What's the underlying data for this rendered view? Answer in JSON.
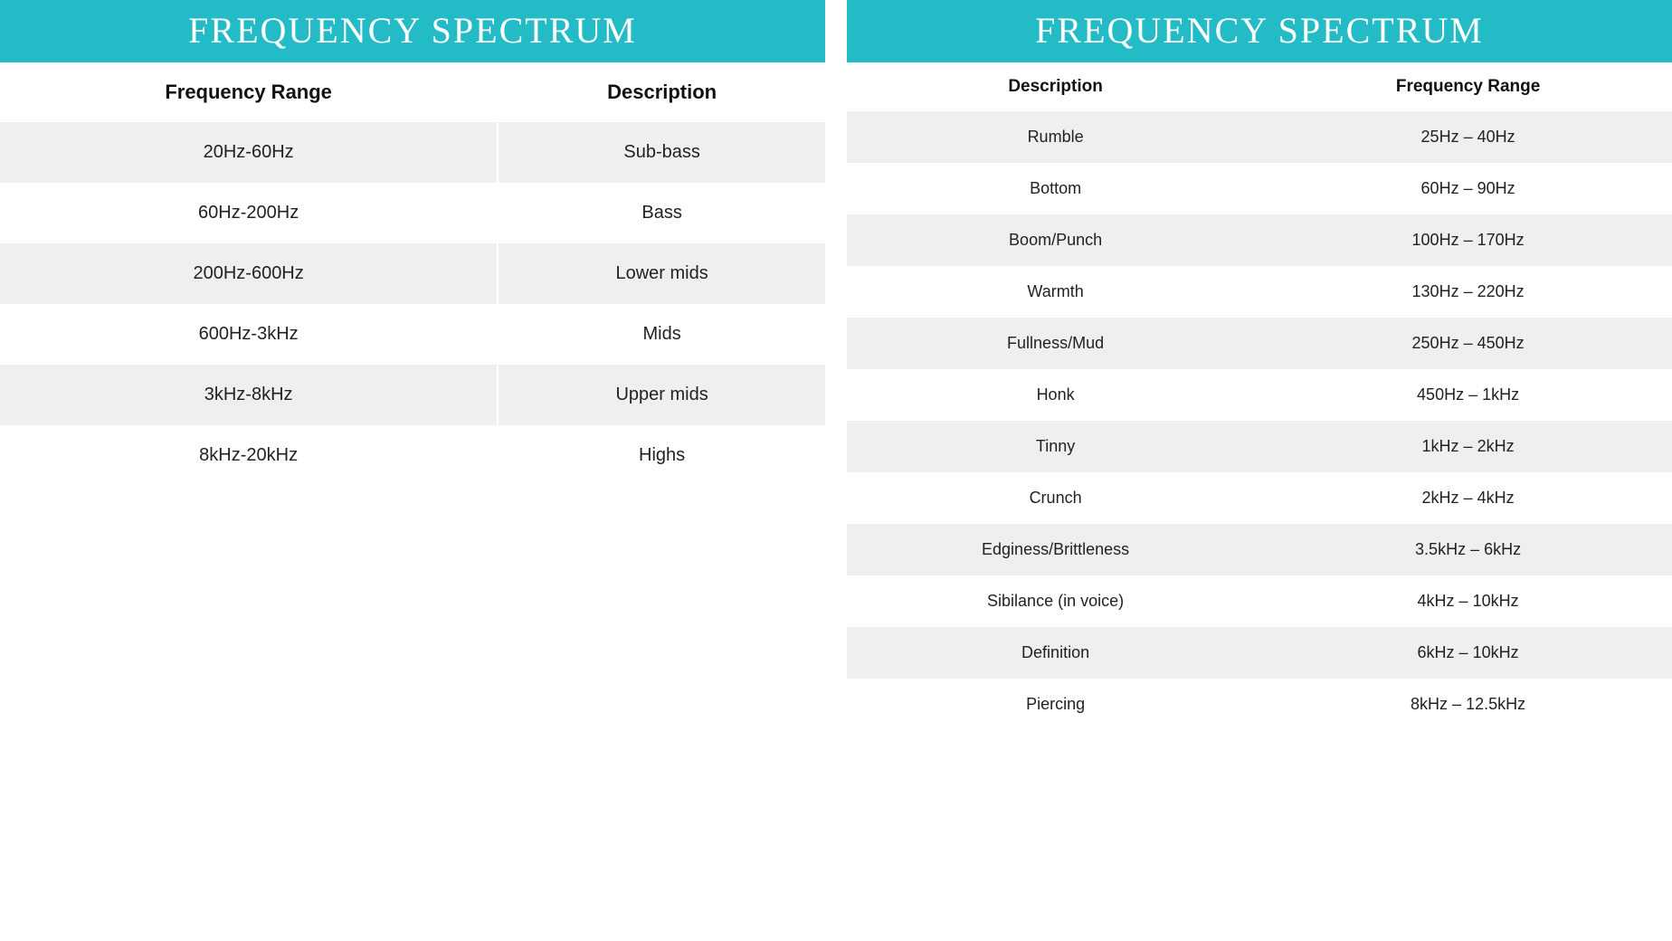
{
  "left": {
    "title": "FREQUENCY SPECTRUM",
    "columns": [
      "Frequency Range",
      "Description"
    ],
    "rows": [
      [
        "20Hz-60Hz",
        "Sub-bass"
      ],
      [
        "60Hz-200Hz",
        "Bass"
      ],
      [
        "200Hz-600Hz",
        "Lower mids"
      ],
      [
        "600Hz-3kHz",
        "Mids"
      ],
      [
        "3kHz-8kHz",
        "Upper mids"
      ],
      [
        "8kHz-20kHz",
        "Highs"
      ]
    ]
  },
  "right": {
    "title": "FREQUENCY SPECTRUM",
    "columns": [
      "Description",
      "Frequency Range"
    ],
    "rows": [
      [
        "Rumble",
        "25Hz – 40Hz"
      ],
      [
        "Bottom",
        "60Hz – 90Hz"
      ],
      [
        "Boom/Punch",
        "100Hz – 170Hz"
      ],
      [
        "Warmth",
        "130Hz – 220Hz"
      ],
      [
        "Fullness/Mud",
        "250Hz – 450Hz"
      ],
      [
        "Honk",
        "450Hz – 1kHz"
      ],
      [
        "Tinny",
        "1kHz – 2kHz"
      ],
      [
        "Crunch",
        "2kHz – 4kHz"
      ],
      [
        "Edginess/Brittleness",
        "3.5kHz – 6kHz"
      ],
      [
        "Sibilance (in voice)",
        "4kHz – 10kHz"
      ],
      [
        "Definition",
        "6kHz – 10kHz"
      ],
      [
        "Piercing",
        "8kHz – 12.5kHz"
      ]
    ]
  },
  "style": {
    "header_bg": "#23bbc6",
    "header_text": "#ffffff",
    "row_alt_bg": "#efefef",
    "row_bg": "#ffffff",
    "text_color": "#222222"
  }
}
